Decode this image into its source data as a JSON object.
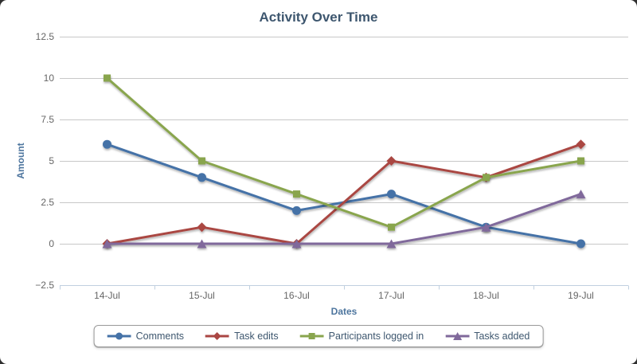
{
  "chart_data": {
    "type": "line",
    "title": "Activity Over Time",
    "xlabel": "Dates",
    "ylabel": "Amount",
    "categories": [
      "14-Jul",
      "15-Jul",
      "16-Jul",
      "17-Jul",
      "18-Jul",
      "19-Jul"
    ],
    "ylim": [
      -2.5,
      12.5
    ],
    "yticks": [
      -2.5,
      0,
      2.5,
      5,
      7.5,
      10,
      12.5
    ],
    "ytick_labels": [
      "−2.5",
      "0",
      "2.5",
      "5",
      "7.5",
      "10",
      "12.5"
    ],
    "grid": true,
    "legend_position": "bottom",
    "series": [
      {
        "name": "Comments",
        "color": "#4572A7",
        "marker": "circle",
        "values": [
          6,
          4,
          2,
          3,
          1,
          0
        ]
      },
      {
        "name": "Task edits",
        "color": "#AA4643",
        "marker": "diamond",
        "values": [
          0,
          1,
          0,
          5,
          4,
          6
        ]
      },
      {
        "name": "Participants logged in",
        "color": "#89A54E",
        "marker": "square",
        "values": [
          10,
          5,
          3,
          1,
          4,
          5
        ]
      },
      {
        "name": "Tasks added",
        "color": "#80699B",
        "marker": "triangle",
        "values": [
          0,
          0,
          0,
          0,
          1,
          3
        ]
      }
    ],
    "style_colors": {
      "title": "#3E576F",
      "axis_title": "#4D759E",
      "tick_label": "#666666",
      "grid_line": "#C8C8C8",
      "axis_line": "#C0D0E0",
      "legend_text": "#3E576F",
      "legend_border": "#9A9A9A",
      "background": "#FFFFFF"
    }
  }
}
